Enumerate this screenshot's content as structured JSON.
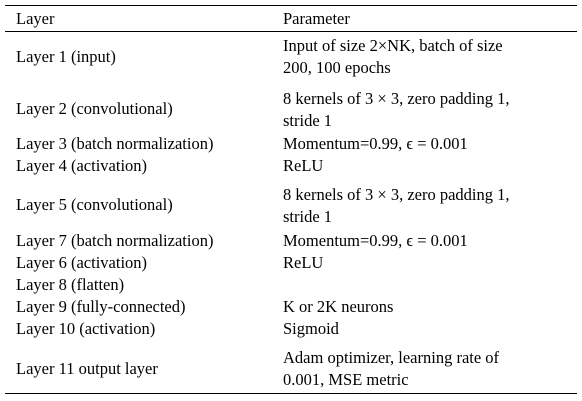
{
  "header": {
    "col_layer": "Layer",
    "col_parameter": "Parameter"
  },
  "rows": [
    {
      "layer": "Layer 1 (input)",
      "param_line1": "Input of size 2×NK, batch of size",
      "param_line2": "200, 100 epochs"
    },
    {
      "layer": "Layer 2 (convolutional)",
      "param_line1": "8 kernels of 3 × 3, zero padding 1,",
      "param_line2": "stride 1"
    },
    {
      "layer": "Layer 3 (batch normalization)",
      "param": "Momentum=0.99, ϵ = 0.001"
    },
    {
      "layer": "Layer 4 (activation)",
      "param": "ReLU"
    },
    {
      "layer": "Layer 5 (convolutional)",
      "param_line1": "8 kernels of 3 × 3, zero padding 1,",
      "param_line2": "stride 1"
    },
    {
      "layer": "Layer 7 (batch normalization)",
      "param": "Momentum=0.99, ϵ = 0.001"
    },
    {
      "layer": "Layer 6 (activation)",
      "param": "ReLU"
    },
    {
      "layer": "Layer 8 (flatten)",
      "param": ""
    },
    {
      "layer": "Layer 9 (fully-connected)",
      "param": "K or 2K neurons"
    },
    {
      "layer": "Layer 10 (activation)",
      "param": "Sigmoid"
    },
    {
      "layer": "Layer 11 output layer",
      "param_line1": "Adam optimizer, learning rate of",
      "param_line2": "0.001, MSE metric"
    }
  ]
}
